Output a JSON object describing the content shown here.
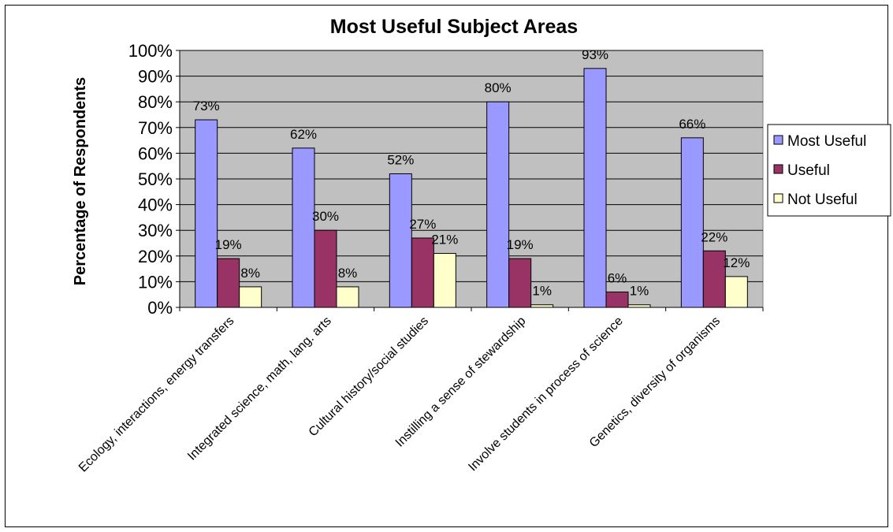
{
  "chart_data": {
    "type": "bar",
    "title": "Most Useful Subject Areas",
    "xlabel": "",
    "ylabel": "Percentage of Respondents",
    "ylim": [
      0,
      100
    ],
    "y_ticks": [
      "0%",
      "10%",
      "20%",
      "30%",
      "40%",
      "50%",
      "60%",
      "70%",
      "80%",
      "90%",
      "100%"
    ],
    "grid": true,
    "legend_position": "right",
    "categories": [
      "Ecology, interactions, energy transfers",
      "Integrated science, math, lang. arts",
      "Cultural history/social studies",
      "Instilling a sense of stewardship",
      "Involve students in process of science",
      "Genetics, diversity of organisms"
    ],
    "series": [
      {
        "name": "Most Useful",
        "color": "#9999ff",
        "values": [
          73,
          62,
          52,
          80,
          93,
          66
        ],
        "labels": [
          "73%",
          "62%",
          "52%",
          "80%",
          "93%",
          "66%"
        ]
      },
      {
        "name": "Useful",
        "color": "#993366",
        "values": [
          19,
          30,
          27,
          19,
          6,
          22
        ],
        "labels": [
          "19%",
          "30%",
          "27%",
          "19%",
          "6%",
          "22%"
        ]
      },
      {
        "name": "Not Useful",
        "color": "#ffffcc",
        "values": [
          8,
          8,
          21,
          1,
          1,
          12
        ],
        "labels": [
          "8%",
          "8%",
          "21%",
          "1%",
          "1%",
          "12%"
        ]
      }
    ],
    "colors": {
      "plot_background": "#c0c0c0",
      "gridline": "#000000"
    }
  }
}
